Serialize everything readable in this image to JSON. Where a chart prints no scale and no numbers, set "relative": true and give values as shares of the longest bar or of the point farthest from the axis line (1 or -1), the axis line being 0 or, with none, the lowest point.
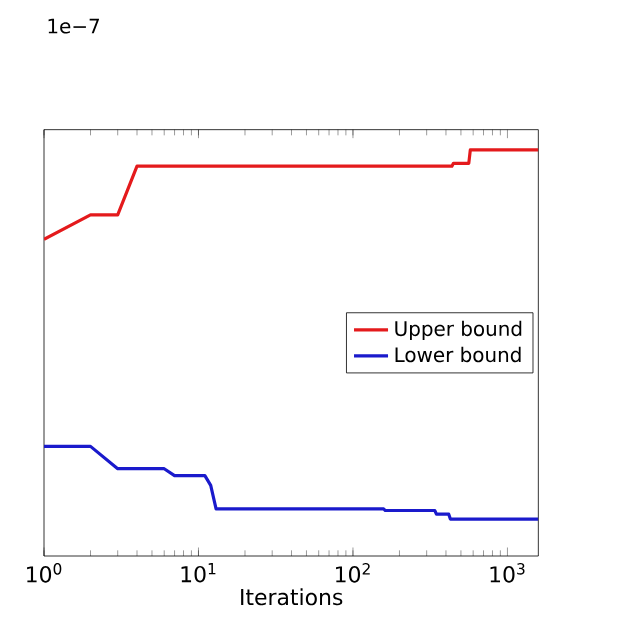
{
  "chart_data": {
    "type": "line",
    "xlabel": "Iterations",
    "relative": true,
    "log": "x",
    "grid": false,
    "legend": "right",
    "marker": "none",
    "line_style": "solid",
    "annotations": [
      "1e−7"
    ],
    "xlim": [
      1,
      1585
    ],
    "xticks": [
      {
        "value": 1,
        "label": "10$^{0}$"
      },
      {
        "value": 10,
        "label": "10$^{1}$"
      },
      {
        "value": 100,
        "label": "10$^{2}$"
      },
      {
        "value": 1000,
        "label": "10$^{3}$"
      }
    ],
    "series": [
      {
        "name": "Upper bound",
        "color": "#e41a1c",
        "x": [
          1,
          2,
          3,
          4,
          437,
          447,
          562,
          575,
          1585
        ],
        "values": [
          0.78,
          0.84,
          0.84,
          0.96,
          0.96,
          0.967,
          0.967,
          1.0,
          1.0
        ]
      },
      {
        "name": "Lower bound",
        "color": "#1a1acc",
        "x": [
          1,
          2,
          3,
          6,
          7,
          11,
          12,
          13,
          158,
          162,
          339,
          347,
          417,
          427,
          1585
        ],
        "values": [
          0.27,
          0.27,
          0.215,
          0.215,
          0.198,
          0.198,
          0.174,
          0.116,
          0.116,
          0.112,
          0.112,
          0.103,
          0.103,
          0.091,
          0.091
        ]
      }
    ]
  }
}
